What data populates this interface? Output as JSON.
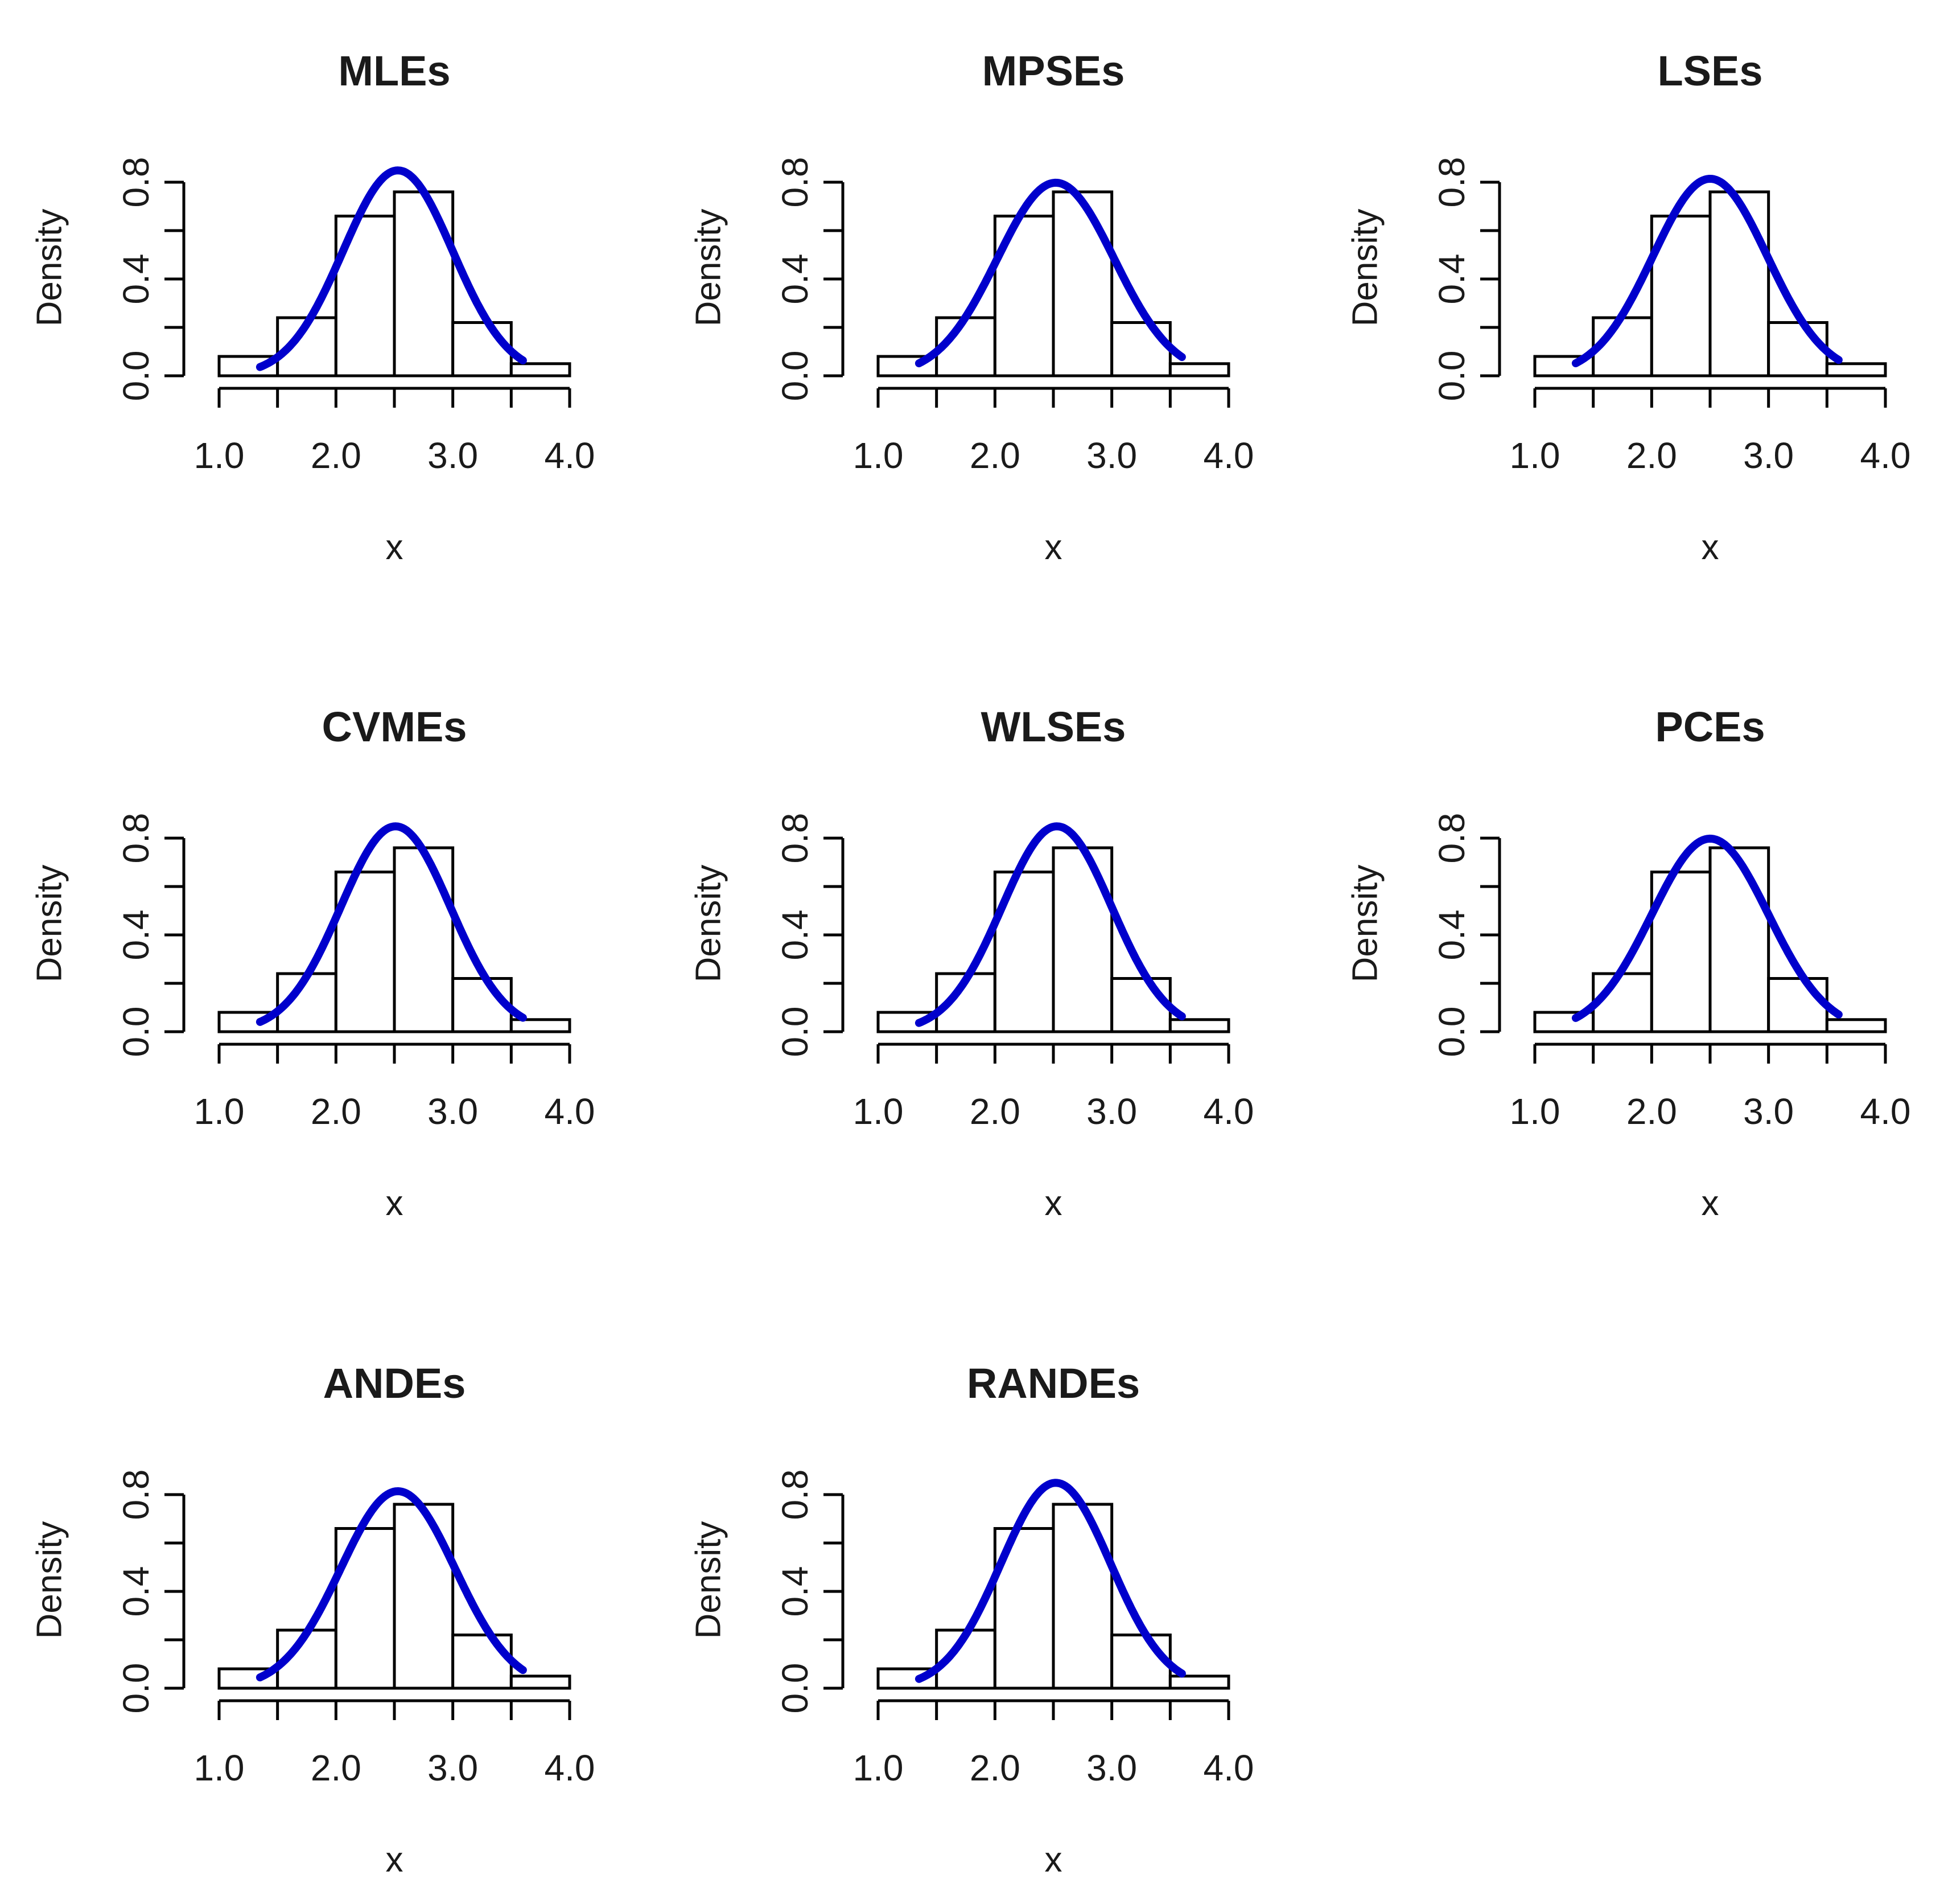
{
  "chart_data": {
    "type": "histogram-grid",
    "layout": "3x3",
    "shared": {
      "bins": [
        [
          1.0,
          1.5
        ],
        [
          1.5,
          2.0
        ],
        [
          2.0,
          2.5
        ],
        [
          2.5,
          3.0
        ],
        [
          3.0,
          3.5
        ],
        [
          3.5,
          4.0
        ]
      ],
      "densities": [
        0.08,
        0.24,
        0.66,
        0.76,
        0.22,
        0.05
      ],
      "xlim": [
        1.0,
        4.0
      ],
      "ylim": [
        0.0,
        0.8
      ],
      "xticks": [
        1.0,
        1.5,
        2.0,
        2.5,
        3.0,
        3.5,
        4.0
      ],
      "xtick_labels": [
        {
          "value": 1.0,
          "text": "1.0"
        },
        {
          "value": 2.0,
          "text": "2.0"
        },
        {
          "value": 3.0,
          "text": "3.0"
        },
        {
          "value": 4.0,
          "text": "4.0"
        }
      ],
      "yticks": [
        0.0,
        0.2,
        0.4,
        0.6,
        0.8
      ],
      "ytick_labels": [
        {
          "value": 0.0,
          "text": "0.0"
        },
        {
          "value": 0.4,
          "text": "0.4"
        },
        {
          "value": 0.8,
          "text": "0.8"
        }
      ],
      "xlabel": "x",
      "ylabel": "Density",
      "curve_color": "#0000cc",
      "curve_x_range": [
        1.35,
        3.6
      ]
    },
    "panels": [
      {
        "title": "MLEs",
        "curve": {
          "mu": 2.53,
          "sigma": 0.47
        }
      },
      {
        "title": "MPSEs",
        "curve": {
          "mu": 2.52,
          "sigma": 0.5
        }
      },
      {
        "title": "LSEs",
        "curve": {
          "mu": 2.5,
          "sigma": 0.49
        }
      },
      {
        "title": "CVMEs",
        "curve": {
          "mu": 2.51,
          "sigma": 0.47
        }
      },
      {
        "title": "WLSEs",
        "curve": {
          "mu": 2.53,
          "sigma": 0.47
        }
      },
      {
        "title": "PCEs",
        "curve": {
          "mu": 2.5,
          "sigma": 0.5
        }
      },
      {
        "title": "ANDEs",
        "curve": {
          "mu": 2.53,
          "sigma": 0.49
        }
      },
      {
        "title": "RANDEs",
        "curve": {
          "mu": 2.52,
          "sigma": 0.47
        }
      }
    ]
  }
}
